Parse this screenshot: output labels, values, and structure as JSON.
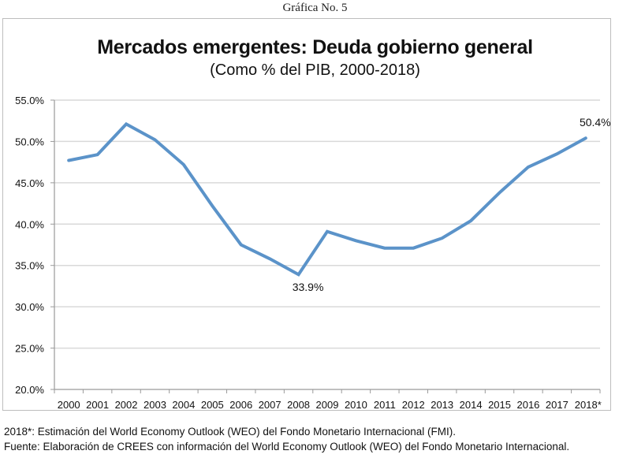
{
  "caption": "Gráfica No. 5",
  "chart_data": {
    "type": "line",
    "title": "Mercados emergentes: Deuda gobierno general",
    "subtitle": "(Como % del PIB, 2000-2018)",
    "xlabel": "",
    "ylabel": "",
    "categories": [
      "2000",
      "2001",
      "2002",
      "2003",
      "2004",
      "2005",
      "2006",
      "2007",
      "2008",
      "2009",
      "2010",
      "2011",
      "2012",
      "2013",
      "2014",
      "2015",
      "2016",
      "2017",
      "2018*"
    ],
    "series": [
      {
        "name": "Deuda gobierno general (% del PIB)",
        "color": "#5b93c9",
        "values": [
          47.7,
          48.4,
          52.1,
          50.2,
          47.2,
          42.2,
          37.5,
          35.8,
          33.9,
          39.1,
          38.0,
          37.1,
          37.1,
          38.3,
          40.4,
          43.8,
          46.9,
          48.5,
          50.4
        ]
      }
    ],
    "ylim": [
      20,
      55
    ],
    "yticks": [
      20,
      25,
      30,
      35,
      40,
      45,
      50,
      55
    ],
    "ytick_labels": [
      "20.0%",
      "25.0%",
      "30.0%",
      "35.0%",
      "40.0%",
      "45.0%",
      "50.0%",
      "55.0%"
    ],
    "grid": true,
    "legend": "none",
    "annotations": [
      {
        "category": "2008",
        "text": "33.9%",
        "position": "below"
      },
      {
        "category": "2018*",
        "text": "50.4%",
        "position": "above"
      }
    ]
  },
  "notes": {
    "estimate": "2018*: Estimación del World Economy Outlook (WEO) del Fondo Monetario Internacional (FMI).",
    "source": "Fuente: Elaboración de CREES con información del World Economy Outlook (WEO) del Fondo Monetario Internacional."
  }
}
